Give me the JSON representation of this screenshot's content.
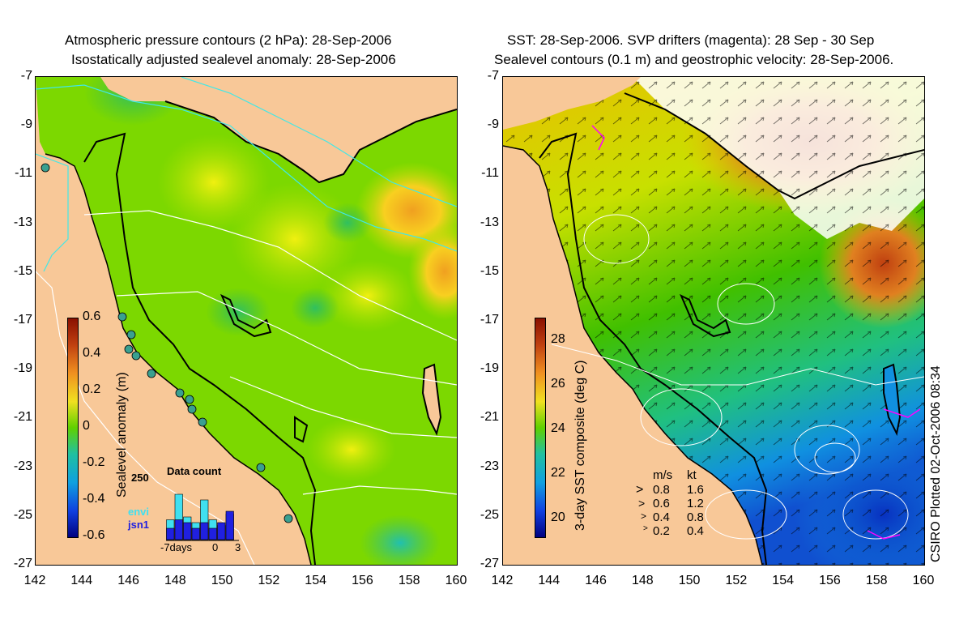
{
  "left_panel": {
    "title_line1": "Atmospheric pressure contours (2 hPa): 28-Sep-2006",
    "title_line2": "Isostatically adjusted sealevel anomaly: 28-Sep-2006",
    "colorbar_label": "Sealevel anomaly (m)",
    "colorbar_ticks": [
      "0.6",
      "0.4",
      "0.2",
      "0",
      "-0.2",
      "-0.4",
      "-0.6"
    ],
    "inset": {
      "title": "Data count",
      "ymax_label": "250",
      "series_labels": [
        "envi",
        "jsn1"
      ],
      "series_colors": [
        "#40e0f0",
        "#2020e0"
      ],
      "x_ticks": [
        "-7days",
        "0",
        "3"
      ],
      "bars_envi": [
        0.35,
        0.8,
        0.4,
        0.3,
        0.7,
        0.35,
        0.25,
        0.45
      ],
      "bars_jsn1": [
        0.2,
        0.35,
        0.3,
        0.2,
        0.3,
        0.2,
        0.3,
        0.5
      ]
    }
  },
  "right_panel": {
    "title_line1": "SST: 28-Sep-2006. SVP drifters (magenta): 28 Sep - 30 Sep",
    "title_line2": "Sealevel contours (0.1 m) and geostrophic velocity: 28-Sep-2006.",
    "colorbar_label": "3-day SST composite (deg C)",
    "colorbar_ticks": [
      "28",
      "26",
      "24",
      "22",
      "20"
    ],
    "velocity_legend": {
      "header_ms": "m/s",
      "header_kt": "kt",
      "rows": [
        {
          "ms": "0.8",
          "kt": "1.6"
        },
        {
          "ms": "0.6",
          "kt": "1.2"
        },
        {
          "ms": "0.4",
          "kt": "0.8"
        },
        {
          "ms": "0.2",
          "kt": "0.4"
        }
      ]
    },
    "credit": "CSIRO Plotted 02-Oct-2006 08:34"
  },
  "axes": {
    "y_ticks": [
      "-7",
      "-9",
      "-11",
      "-13",
      "-15",
      "-17",
      "-19",
      "-21",
      "-23",
      "-25",
      "-27"
    ],
    "x_ticks": [
      "142",
      "144",
      "146",
      "148",
      "150",
      "152",
      "154",
      "156",
      "158",
      "160"
    ]
  },
  "colors": {
    "land": "#f8c898",
    "sla_base": "#7cd800",
    "sst_base": "#66cc00",
    "coast": "#000000",
    "pressure_contour": "#40e8e8",
    "sealevel_contour": "#ffffff",
    "drifter": "#ff00ff"
  }
}
